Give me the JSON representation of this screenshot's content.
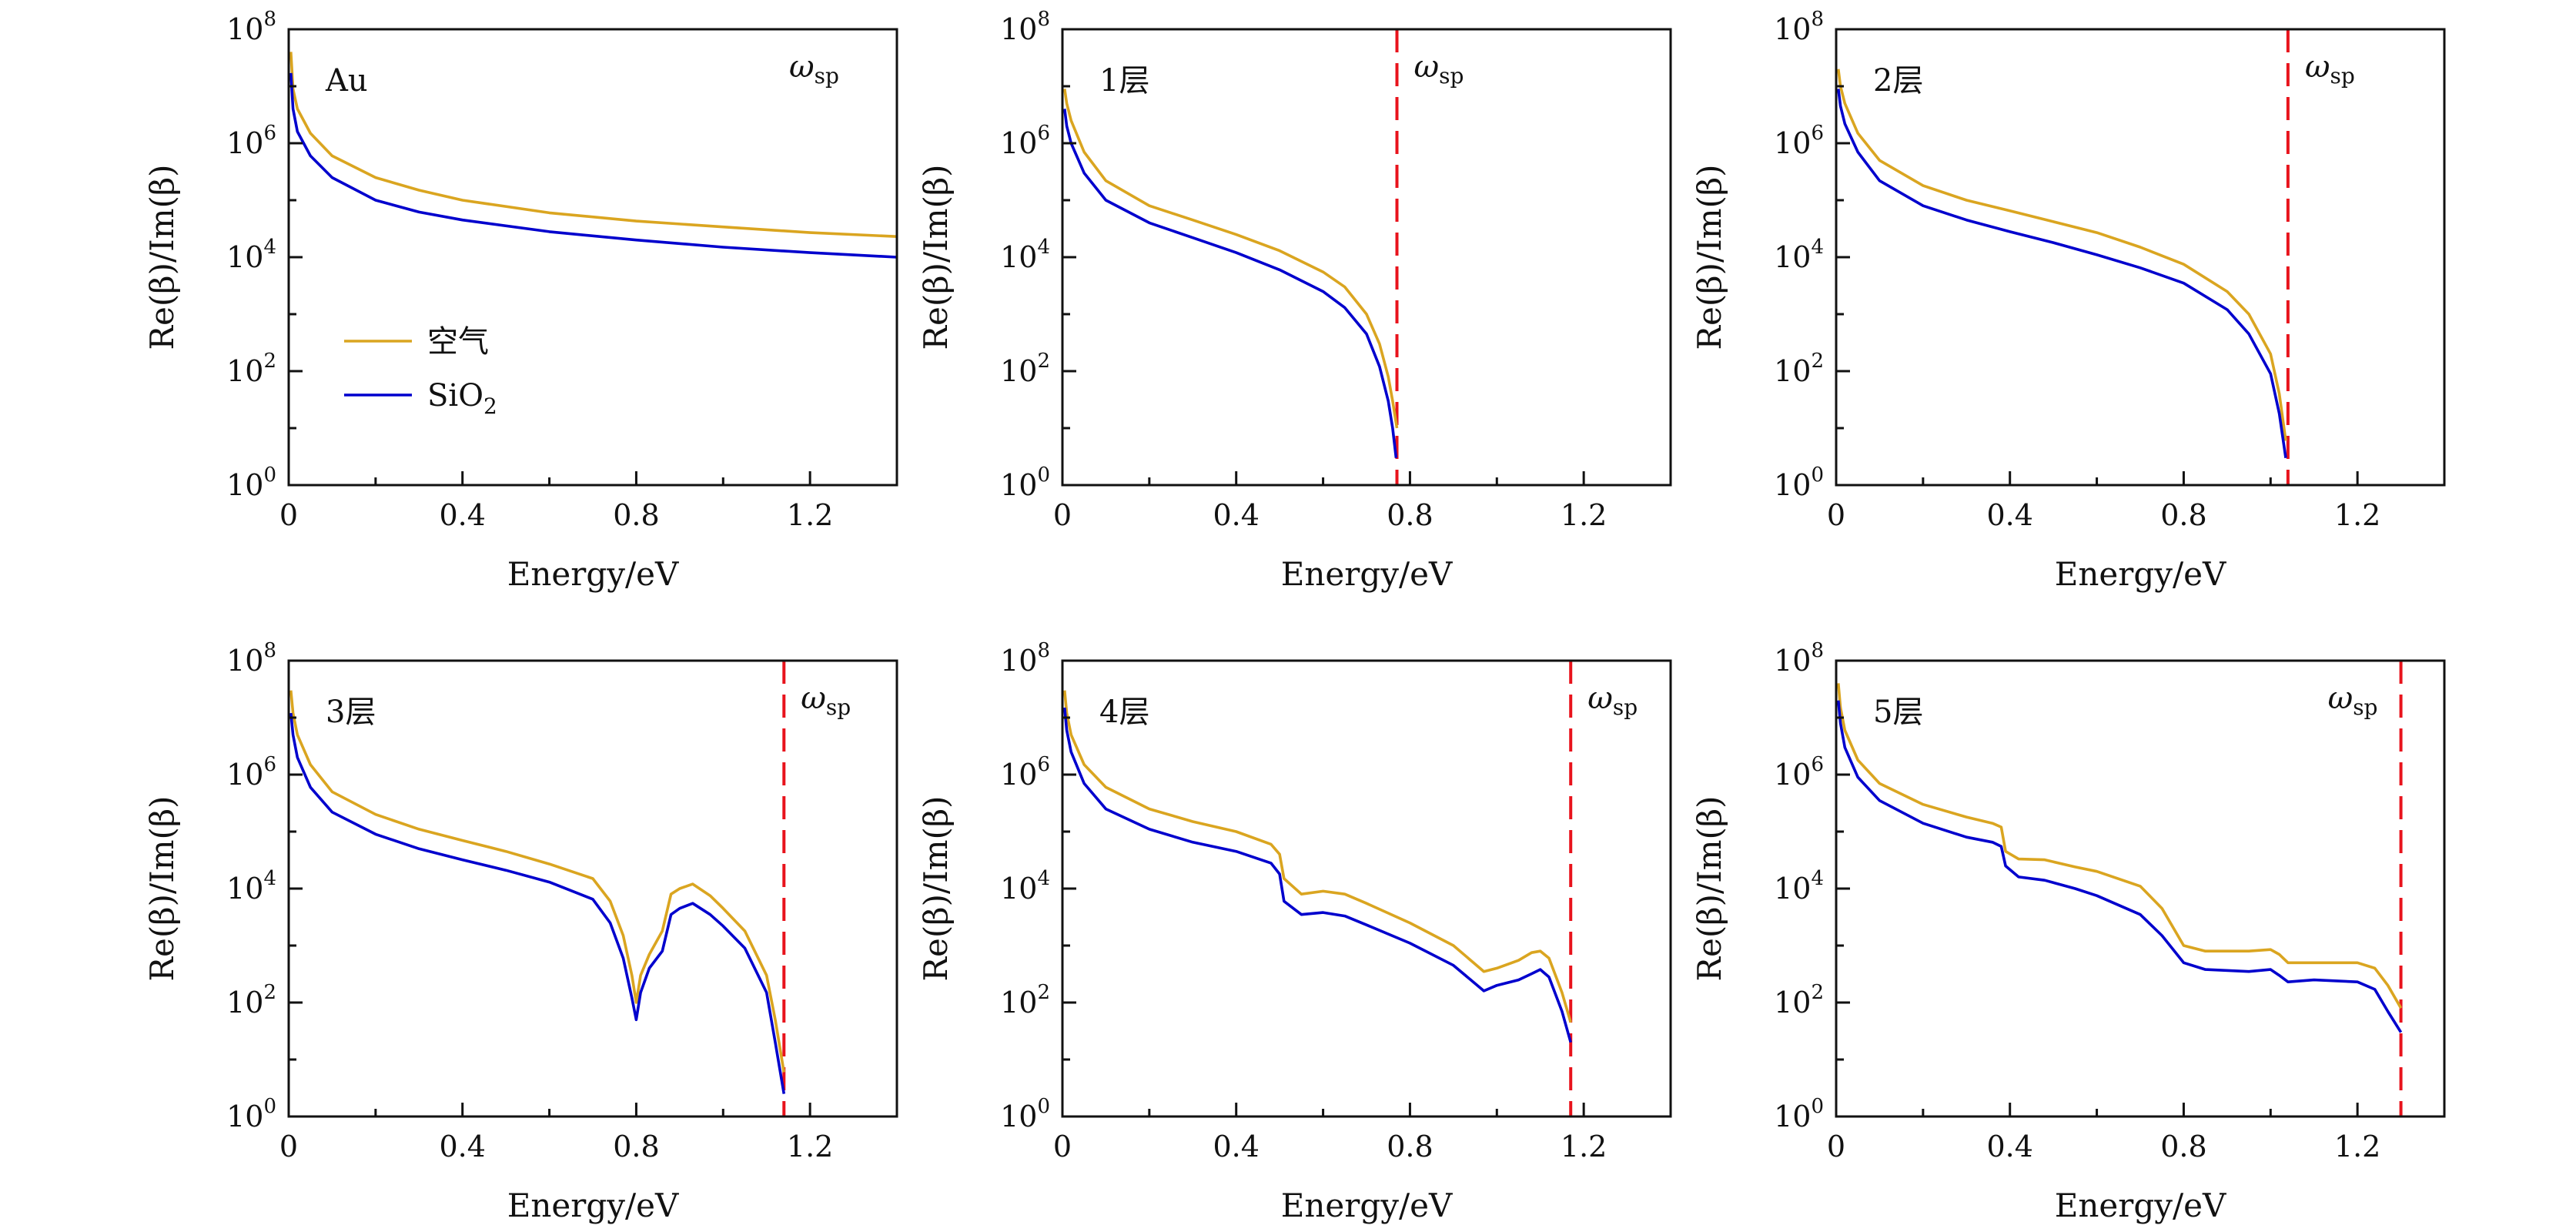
{
  "colors": {
    "air": "#DAA520",
    "sio2": "#0000CD",
    "omega_line": "#E8131C",
    "frame": "#111111"
  },
  "common": {
    "xlabel": "Energy/eV",
    "ylabel": "Re(β)/Im(β)",
    "xticks": [
      0,
      0.4,
      0.8,
      1.2
    ],
    "xtick_labels": [
      "0",
      "0.4",
      "0.8",
      "1.2"
    ],
    "ytick_exponents": [
      0,
      2,
      4,
      6,
      8
    ],
    "ytick_base": "10",
    "omega_main": "ω",
    "omega_sub": "sp",
    "xlim": [
      0,
      1.4
    ],
    "ylim": [
      1,
      100000000
    ],
    "yscale": "log"
  },
  "legend": {
    "entries": [
      {
        "name": "空气",
        "color": "#DAA520"
      },
      {
        "name": "SiO",
        "sub": "2",
        "color": "#0000CD"
      }
    ]
  },
  "chart_data": [
    {
      "type": "line",
      "panel_label": "Au",
      "omega_sp": null,
      "omega_label_pos": "top-right",
      "series": [
        {
          "name": "空气",
          "color": "#DAA520",
          "x": [
            0.005,
            0.01,
            0.02,
            0.05,
            0.1,
            0.2,
            0.3,
            0.4,
            0.6,
            0.8,
            1.0,
            1.2,
            1.4
          ],
          "y": [
            40000000,
            9000000,
            4000000,
            1500000,
            600000,
            250000,
            150000,
            100000,
            60000,
            43000,
            34000,
            27000,
            23000
          ]
        },
        {
          "name": "SiO2",
          "color": "#0000CD",
          "x": [
            0.005,
            0.01,
            0.02,
            0.05,
            0.1,
            0.2,
            0.3,
            0.4,
            0.6,
            0.8,
            1.0,
            1.2,
            1.4
          ],
          "y": [
            17000000,
            4000000,
            1600000,
            600000,
            250000,
            100000,
            62000,
            45000,
            28000,
            20000,
            15000,
            12000,
            10000
          ]
        }
      ]
    },
    {
      "type": "line",
      "panel_label": "1层",
      "omega_sp": 0.77,
      "omega_label_pos": "right-of-line",
      "series": [
        {
          "name": "空气",
          "color": "#DAA520",
          "x": [
            0.005,
            0.01,
            0.02,
            0.05,
            0.1,
            0.2,
            0.3,
            0.4,
            0.5,
            0.6,
            0.65,
            0.7,
            0.73,
            0.75,
            0.76,
            0.77
          ],
          "y": [
            9000000,
            5000000,
            2500000,
            700000,
            220000,
            80000,
            45000,
            25000,
            13000,
            5500,
            3000,
            1000,
            300,
            80,
            30,
            10
          ]
        },
        {
          "name": "SiO2",
          "color": "#0000CD",
          "x": [
            0.005,
            0.01,
            0.02,
            0.05,
            0.1,
            0.2,
            0.3,
            0.4,
            0.5,
            0.6,
            0.65,
            0.7,
            0.73,
            0.75,
            0.76,
            0.768
          ],
          "y": [
            4000000,
            2000000,
            1000000,
            300000,
            100000,
            40000,
            22000,
            12000,
            6000,
            2500,
            1300,
            450,
            120,
            30,
            10,
            3
          ]
        }
      ]
    },
    {
      "type": "line",
      "panel_label": "2层",
      "omega_sp": 1.04,
      "omega_label_pos": "right-of-line",
      "series": [
        {
          "name": "空气",
          "color": "#DAA520",
          "x": [
            0.005,
            0.01,
            0.02,
            0.05,
            0.1,
            0.2,
            0.3,
            0.4,
            0.5,
            0.6,
            0.7,
            0.8,
            0.9,
            0.95,
            1.0,
            1.02,
            1.035
          ],
          "y": [
            20000000,
            10000000,
            5000000,
            1500000,
            500000,
            180000,
            100000,
            65000,
            42000,
            27000,
            15000,
            7500,
            2500,
            1000,
            200,
            40,
            6
          ]
        },
        {
          "name": "SiO2",
          "color": "#0000CD",
          "x": [
            0.005,
            0.01,
            0.02,
            0.05,
            0.1,
            0.2,
            0.3,
            0.4,
            0.5,
            0.6,
            0.7,
            0.8,
            0.9,
            0.95,
            1.0,
            1.02,
            1.035
          ],
          "y": [
            9000000,
            4500000,
            2200000,
            700000,
            220000,
            80000,
            45000,
            28000,
            18000,
            11000,
            6500,
            3500,
            1200,
            450,
            90,
            18,
            3
          ]
        }
      ]
    },
    {
      "type": "line",
      "panel_label": "3层",
      "omega_sp": 1.14,
      "omega_label_pos": "right-of-line",
      "series": [
        {
          "name": "空气",
          "color": "#DAA520",
          "x": [
            0.005,
            0.01,
            0.02,
            0.05,
            0.1,
            0.2,
            0.3,
            0.4,
            0.5,
            0.6,
            0.7,
            0.74,
            0.77,
            0.79,
            0.8,
            0.81,
            0.83,
            0.86,
            0.88,
            0.9,
            0.93,
            0.97,
            1.0,
            1.05,
            1.1,
            1.12,
            1.14
          ],
          "y": [
            30000000,
            12000000,
            5000000,
            1500000,
            500000,
            200000,
            110000,
            70000,
            45000,
            27000,
            15000,
            6000,
            1500,
            300,
            100,
            300,
            700,
            1800,
            8000,
            10000,
            12000,
            7500,
            4500,
            1800,
            300,
            50,
            6
          ]
        },
        {
          "name": "SiO2",
          "color": "#0000CD",
          "x": [
            0.005,
            0.01,
            0.02,
            0.05,
            0.1,
            0.2,
            0.3,
            0.4,
            0.5,
            0.6,
            0.7,
            0.74,
            0.77,
            0.79,
            0.8,
            0.81,
            0.83,
            0.86,
            0.88,
            0.9,
            0.93,
            0.97,
            1.0,
            1.05,
            1.1,
            1.12,
            1.14
          ],
          "y": [
            12000000,
            5000000,
            2000000,
            600000,
            220000,
            90000,
            50000,
            32000,
            21000,
            13000,
            6500,
            2500,
            600,
            120,
            50,
            150,
            400,
            800,
            3500,
            4500,
            5500,
            3500,
            2200,
            900,
            150,
            20,
            2.5
          ]
        }
      ]
    },
    {
      "type": "line",
      "panel_label": "4层",
      "omega_sp": 1.17,
      "omega_label_pos": "right-of-line",
      "series": [
        {
          "name": "空气",
          "color": "#DAA520",
          "x": [
            0.005,
            0.01,
            0.02,
            0.05,
            0.1,
            0.2,
            0.3,
            0.4,
            0.48,
            0.5,
            0.51,
            0.55,
            0.6,
            0.65,
            0.7,
            0.8,
            0.9,
            0.97,
            1.0,
            1.05,
            1.08,
            1.1,
            1.12,
            1.15,
            1.17
          ],
          "y": [
            30000000,
            12000000,
            5000000,
            1500000,
            600000,
            250000,
            150000,
            100000,
            60000,
            40000,
            15000,
            8000,
            9000,
            8000,
            5500,
            2500,
            1000,
            350,
            400,
            550,
            750,
            800,
            600,
            150,
            45
          ]
        },
        {
          "name": "SiO2",
          "color": "#0000CD",
          "x": [
            0.005,
            0.01,
            0.02,
            0.05,
            0.1,
            0.2,
            0.3,
            0.4,
            0.48,
            0.5,
            0.51,
            0.55,
            0.6,
            0.65,
            0.7,
            0.8,
            0.9,
            0.97,
            1.0,
            1.05,
            1.08,
            1.1,
            1.12,
            1.15,
            1.17
          ],
          "y": [
            15000000,
            6000000,
            2500000,
            700000,
            250000,
            110000,
            65000,
            45000,
            28000,
            18000,
            6000,
            3500,
            3800,
            3300,
            2300,
            1100,
            450,
            160,
            200,
            250,
            320,
            380,
            280,
            70,
            20
          ]
        }
      ]
    },
    {
      "type": "line",
      "panel_label": "5层",
      "omega_sp": 1.3,
      "omega_label_pos": "left-of-line",
      "series": [
        {
          "name": "空气",
          "color": "#DAA520",
          "x": [
            0.005,
            0.01,
            0.02,
            0.05,
            0.1,
            0.2,
            0.3,
            0.36,
            0.38,
            0.39,
            0.42,
            0.48,
            0.55,
            0.6,
            0.7,
            0.75,
            0.8,
            0.85,
            0.95,
            1.0,
            1.02,
            1.04,
            1.1,
            1.2,
            1.24,
            1.27,
            1.3
          ],
          "y": [
            40000000,
            15000000,
            6000000,
            1800000,
            700000,
            300000,
            180000,
            140000,
            120000,
            45000,
            33000,
            32000,
            24000,
            20000,
            11000,
            4500,
            1000,
            800,
            800,
            850,
            700,
            500,
            500,
            500,
            400,
            200,
            80
          ]
        },
        {
          "name": "SiO2",
          "color": "#0000CD",
          "x": [
            0.005,
            0.01,
            0.02,
            0.05,
            0.1,
            0.2,
            0.3,
            0.36,
            0.38,
            0.39,
            0.42,
            0.48,
            0.55,
            0.6,
            0.7,
            0.75,
            0.8,
            0.85,
            0.95,
            1.0,
            1.02,
            1.04,
            1.1,
            1.2,
            1.24,
            1.27,
            1.3
          ],
          "y": [
            20000000,
            8000000,
            3000000,
            900000,
            350000,
            140000,
            80000,
            65000,
            55000,
            25000,
            16000,
            14000,
            10000,
            7500,
            3500,
            1500,
            500,
            380,
            350,
            380,
            300,
            230,
            250,
            230,
            170,
            70,
            30
          ]
        }
      ]
    }
  ]
}
